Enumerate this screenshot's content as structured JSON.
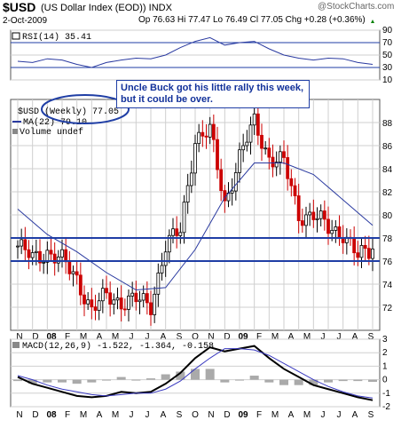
{
  "header": {
    "symbol": "$USD",
    "description": "(US Dollar Index (EOD)) INDX",
    "watermark": "@StockCharts.com",
    "date": "2-Oct-2009",
    "ohlc": "Op 76.63 Hi 77.47 Lo 76.49 Cl 77.05 Chg +0.28 (+0.36%)",
    "change_arrow": "up-triangle-icon"
  },
  "annotation": {
    "text": "Uncle Buck got his little rally this week, but it could be over.",
    "color": "#1f3ea5"
  },
  "chart_data": [
    {
      "type": "line",
      "panel": "RSI",
      "legend": "RSI(14) 35.41",
      "ylim": [
        10,
        90
      ],
      "yticks": [
        10,
        30,
        50,
        70,
        90
      ],
      "reference_levels": [
        30,
        70
      ],
      "x": [
        "Oct 2007",
        "Nov",
        "Dec",
        "Jan 2008",
        "Feb",
        "Mar",
        "Apr",
        "May",
        "Jun",
        "Jul",
        "Aug",
        "Sep",
        "Oct",
        "Nov",
        "Dec",
        "Jan 2009",
        "Feb",
        "Mar",
        "Apr",
        "May",
        "Jun",
        "Jul",
        "Aug",
        "Sep",
        "Oct 2009"
      ],
      "values": [
        40,
        38,
        44,
        42,
        35,
        30,
        38,
        42,
        45,
        44,
        50,
        62,
        72,
        78,
        66,
        70,
        72,
        60,
        50,
        45,
        42,
        45,
        44,
        38,
        35
      ],
      "color": "#2a3aa0"
    },
    {
      "type": "bar",
      "subtype": "candlestick",
      "panel": "Price",
      "legend": [
        "$USD (Weekly) 77.05",
        "MA(22) 79.10",
        "Volume undef"
      ],
      "ylim": [
        70,
        90
      ],
      "yticks": [
        72,
        74,
        76,
        78,
        80,
        82,
        84,
        86,
        88
      ],
      "xtick_labels": [
        "N",
        "D",
        "08",
        "F",
        "M",
        "A",
        "M",
        "J",
        "J",
        "A",
        "S",
        "O",
        "N",
        "D",
        "09",
        "F",
        "M",
        "A",
        "M",
        "J",
        "J",
        "A",
        "S"
      ],
      "horizontal_lines": [
        78.0,
        76.0
      ],
      "up_color": "#ffffff",
      "down_color": "#cc0000",
      "ma_color": "#2a3aa0",
      "line_color": "#1f3ea5",
      "close_by_month": [
        {
          "month": "Oct 2007",
          "close": 77.3
        },
        {
          "month": "Nov",
          "close": 76.2
        },
        {
          "month": "Dec",
          "close": 76.8
        },
        {
          "month": "Jan 2008",
          "close": 76.0
        },
        {
          "month": "Feb",
          "close": 74.5
        },
        {
          "month": "Mar",
          "close": 71.7
        },
        {
          "month": "Apr",
          "close": 73.0
        },
        {
          "month": "May",
          "close": 72.5
        },
        {
          "month": "Jun",
          "close": 72.6
        },
        {
          "month": "Jul",
          "close": 72.2
        },
        {
          "month": "Aug",
          "close": 77.3
        },
        {
          "month": "Sep",
          "close": 78.6
        },
        {
          "month": "Oct",
          "close": 86.6
        },
        {
          "month": "Nov",
          "close": 87.2
        },
        {
          "month": "Dec",
          "close": 81.0
        },
        {
          "month": "Jan 2009",
          "close": 85.0
        },
        {
          "month": "Feb",
          "close": 88.0
        },
        {
          "month": "Mar",
          "close": 85.0
        },
        {
          "month": "Apr",
          "close": 84.5
        },
        {
          "month": "May",
          "close": 80.0
        },
        {
          "month": "Jun",
          "close": 80.0
        },
        {
          "month": "Jul",
          "close": 78.8
        },
        {
          "month": "Aug",
          "close": 78.5
        },
        {
          "month": "Sep",
          "close": 76.3
        },
        {
          "month": "Oct 2009",
          "close": 77.05
        }
      ],
      "ma22_by_month": [
        {
          "month": "Oct 2007",
          "value": 80.5
        },
        {
          "month": "Dec",
          "value": 78.3
        },
        {
          "month": "Feb",
          "value": 76.8
        },
        {
          "month": "Apr",
          "value": 75.0
        },
        {
          "month": "Jun",
          "value": 73.5
        },
        {
          "month": "Aug",
          "value": 73.7
        },
        {
          "month": "Oct",
          "value": 77.0
        },
        {
          "month": "Dec",
          "value": 81.5
        },
        {
          "month": "Feb",
          "value": 84.5
        },
        {
          "month": "Apr",
          "value": 84.5
        },
        {
          "month": "Jun",
          "value": 83.5
        },
        {
          "month": "Aug",
          "value": 81.3
        },
        {
          "month": "Oct 2009",
          "value": 79.1
        }
      ]
    },
    {
      "type": "line",
      "panel": "MACD",
      "legend": "MACD(12,26,9) -1.522, -1.364, -0.158",
      "ylim": [
        -2,
        3
      ],
      "yticks": [
        -2,
        -1,
        0,
        1,
        2,
        3
      ],
      "series": [
        {
          "name": "MACD",
          "color": "#000000",
          "values": [
            0.2,
            -0.3,
            -0.6,
            -0.9,
            -1.2,
            -1.3,
            -1.2,
            -0.9,
            -1.0,
            -0.9,
            -0.3,
            0.5,
            1.6,
            2.4,
            2.1,
            2.3,
            2.5,
            1.6,
            0.8,
            0.2,
            -0.4,
            -0.7,
            -1.0,
            -1.3,
            -1.52
          ]
        },
        {
          "name": "Signal",
          "color": "#3a3ac0",
          "values": [
            0.3,
            0.0,
            -0.4,
            -0.7,
            -0.9,
            -1.1,
            -1.2,
            -1.1,
            -1.0,
            -1.0,
            -0.7,
            -0.1,
            0.8,
            1.6,
            2.3,
            2.3,
            2.2,
            1.8,
            1.2,
            0.6,
            0.0,
            -0.5,
            -0.9,
            -1.2,
            -1.36
          ]
        }
      ],
      "histogram": [
        -0.1,
        -0.3,
        -0.2,
        -0.2,
        -0.3,
        -0.2,
        0.0,
        0.2,
        0.0,
        0.1,
        0.4,
        0.6,
        0.8,
        0.8,
        -0.2,
        0.0,
        0.3,
        -0.2,
        -0.4,
        -0.4,
        -0.4,
        -0.2,
        -0.1,
        -0.1,
        -0.158
      ],
      "histogram_color": "#aaaaaa"
    }
  ]
}
